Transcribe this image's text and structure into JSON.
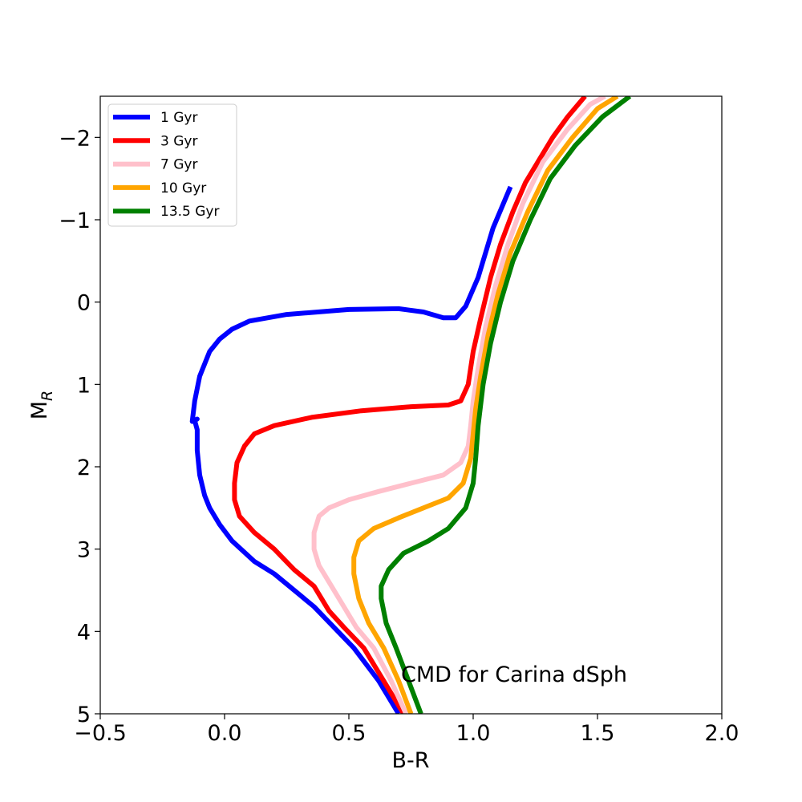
{
  "chart_data": {
    "type": "line",
    "title": "",
    "xlabel": "B-R",
    "ylabel": "M",
    "ylabel_sub": "R",
    "xlim": [
      -0.5,
      2.0
    ],
    "ylim": [
      5,
      -2.5
    ],
    "y_inverted": true,
    "grid": false,
    "legend_position": "top-left",
    "x_ticks": [
      "−0.5",
      "0.0",
      "0.5",
      "1.0",
      "1.5",
      "2.0"
    ],
    "x_tick_values": [
      -0.5,
      0.0,
      0.5,
      1.0,
      1.5,
      2.0
    ],
    "y_ticks": [
      "−2",
      "−1",
      "0",
      "1",
      "2",
      "3",
      "4",
      "5"
    ],
    "y_tick_values": [
      -2,
      -1,
      0,
      1,
      2,
      3,
      4,
      5
    ],
    "annotation": "CMD for Carina dSph",
    "series": [
      {
        "name": "1 Gyr",
        "color": "#0000ff",
        "points": [
          [
            0.7,
            5.0
          ],
          [
            0.62,
            4.6
          ],
          [
            0.52,
            4.2
          ],
          [
            0.44,
            3.95
          ],
          [
            0.36,
            3.7
          ],
          [
            0.3,
            3.55
          ],
          [
            0.2,
            3.3
          ],
          [
            0.12,
            3.15
          ],
          [
            0.03,
            2.9
          ],
          [
            -0.02,
            2.7
          ],
          [
            -0.06,
            2.5
          ],
          [
            -0.08,
            2.35
          ],
          [
            -0.1,
            2.1
          ],
          [
            -0.11,
            1.8
          ],
          [
            -0.11,
            1.55
          ],
          [
            -0.12,
            1.44
          ],
          [
            -0.11,
            1.42
          ],
          [
            -0.13,
            1.45
          ],
          [
            -0.12,
            1.2
          ],
          [
            -0.1,
            0.9
          ],
          [
            -0.06,
            0.6
          ],
          [
            -0.02,
            0.45
          ],
          [
            0.03,
            0.33
          ],
          [
            0.1,
            0.23
          ],
          [
            0.25,
            0.15
          ],
          [
            0.5,
            0.09
          ],
          [
            0.7,
            0.08
          ],
          [
            0.8,
            0.12
          ],
          [
            0.88,
            0.19
          ],
          [
            0.93,
            0.19
          ],
          [
            0.97,
            0.05
          ],
          [
            1.02,
            -0.3
          ],
          [
            1.08,
            -0.9
          ],
          [
            1.15,
            -1.4
          ]
        ]
      },
      {
        "name": "3 Gyr",
        "color": "#ff0000",
        "points": [
          [
            0.72,
            5.0
          ],
          [
            0.64,
            4.6
          ],
          [
            0.56,
            4.2
          ],
          [
            0.48,
            3.95
          ],
          [
            0.42,
            3.75
          ],
          [
            0.36,
            3.45
          ],
          [
            0.28,
            3.25
          ],
          [
            0.2,
            3.0
          ],
          [
            0.12,
            2.8
          ],
          [
            0.06,
            2.6
          ],
          [
            0.04,
            2.4
          ],
          [
            0.04,
            2.2
          ],
          [
            0.05,
            1.95
          ],
          [
            0.08,
            1.75
          ],
          [
            0.12,
            1.6
          ],
          [
            0.2,
            1.5
          ],
          [
            0.35,
            1.4
          ],
          [
            0.55,
            1.32
          ],
          [
            0.75,
            1.27
          ],
          [
            0.9,
            1.25
          ],
          [
            0.95,
            1.2
          ],
          [
            0.98,
            1.0
          ],
          [
            1.0,
            0.6
          ],
          [
            1.03,
            0.2
          ],
          [
            1.07,
            -0.3
          ],
          [
            1.11,
            -0.7
          ],
          [
            1.16,
            -1.1
          ],
          [
            1.21,
            -1.45
          ],
          [
            1.26,
            -1.7
          ],
          [
            1.32,
            -2.0
          ],
          [
            1.38,
            -2.25
          ],
          [
            1.45,
            -2.5
          ]
        ]
      },
      {
        "name": "7 Gyr",
        "color": "#ffc0cb",
        "points": [
          [
            0.73,
            5.0
          ],
          [
            0.67,
            4.6
          ],
          [
            0.6,
            4.2
          ],
          [
            0.53,
            3.95
          ],
          [
            0.48,
            3.7
          ],
          [
            0.42,
            3.4
          ],
          [
            0.38,
            3.2
          ],
          [
            0.36,
            3.0
          ],
          [
            0.36,
            2.8
          ],
          [
            0.38,
            2.6
          ],
          [
            0.42,
            2.5
          ],
          [
            0.5,
            2.4
          ],
          [
            0.62,
            2.3
          ],
          [
            0.75,
            2.2
          ],
          [
            0.88,
            2.1
          ],
          [
            0.95,
            1.95
          ],
          [
            0.98,
            1.75
          ],
          [
            0.99,
            1.5
          ],
          [
            1.0,
            1.2
          ],
          [
            1.02,
            0.8
          ],
          [
            1.05,
            0.3
          ],
          [
            1.09,
            -0.2
          ],
          [
            1.14,
            -0.7
          ],
          [
            1.2,
            -1.2
          ],
          [
            1.28,
            -1.7
          ],
          [
            1.38,
            -2.1
          ],
          [
            1.47,
            -2.4
          ],
          [
            1.53,
            -2.5
          ]
        ]
      },
      {
        "name": "10 Gyr",
        "color": "#ffa500",
        "points": [
          [
            0.75,
            5.0
          ],
          [
            0.7,
            4.6
          ],
          [
            0.64,
            4.2
          ],
          [
            0.58,
            3.9
          ],
          [
            0.54,
            3.6
          ],
          [
            0.52,
            3.3
          ],
          [
            0.52,
            3.1
          ],
          [
            0.54,
            2.9
          ],
          [
            0.6,
            2.75
          ],
          [
            0.7,
            2.62
          ],
          [
            0.8,
            2.5
          ],
          [
            0.9,
            2.38
          ],
          [
            0.96,
            2.2
          ],
          [
            0.99,
            1.9
          ],
          [
            1.0,
            1.6
          ],
          [
            1.01,
            1.3
          ],
          [
            1.03,
            0.9
          ],
          [
            1.06,
            0.4
          ],
          [
            1.1,
            -0.1
          ],
          [
            1.15,
            -0.6
          ],
          [
            1.22,
            -1.1
          ],
          [
            1.3,
            -1.6
          ],
          [
            1.4,
            -2.0
          ],
          [
            1.5,
            -2.35
          ],
          [
            1.58,
            -2.5
          ]
        ]
      },
      {
        "name": "13.5 Gyr",
        "color": "#008000",
        "points": [
          [
            0.79,
            5.0
          ],
          [
            0.74,
            4.6
          ],
          [
            0.69,
            4.2
          ],
          [
            0.65,
            3.9
          ],
          [
            0.63,
            3.6
          ],
          [
            0.63,
            3.45
          ],
          [
            0.66,
            3.25
          ],
          [
            0.72,
            3.05
          ],
          [
            0.82,
            2.9
          ],
          [
            0.9,
            2.75
          ],
          [
            0.97,
            2.5
          ],
          [
            1.0,
            2.2
          ],
          [
            1.01,
            1.9
          ],
          [
            1.02,
            1.5
          ],
          [
            1.04,
            1.0
          ],
          [
            1.07,
            0.5
          ],
          [
            1.11,
            0.0
          ],
          [
            1.16,
            -0.5
          ],
          [
            1.23,
            -1.0
          ],
          [
            1.31,
            -1.5
          ],
          [
            1.41,
            -1.9
          ],
          [
            1.52,
            -2.25
          ],
          [
            1.63,
            -2.5
          ]
        ]
      }
    ]
  }
}
